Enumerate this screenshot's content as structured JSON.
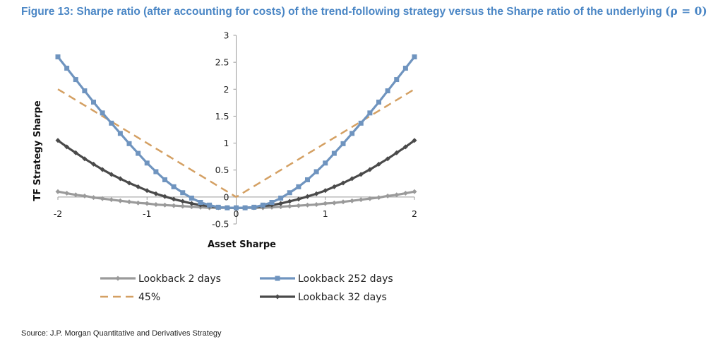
{
  "header": {
    "title_text": "Figure 13: Sharpe ratio (after accounting for costs) of the trend-following strategy versus the Sharpe ratio of the underlying ",
    "title_math": "(ρ = 0)"
  },
  "footer": {
    "source": "Source: J.P. Morgan Quantitative and Derivatives Strategy"
  },
  "chart_data": {
    "type": "line",
    "xlabel": "Asset Sharpe",
    "ylabel": "TF Strategy Sharpe",
    "xlim": [
      -2,
      2
    ],
    "ylim": [
      -0.5,
      3
    ],
    "xticks": [
      -2,
      -1,
      0,
      1,
      2
    ],
    "xtick_labels": [
      "-2",
      "-1",
      "0",
      "1",
      "2"
    ],
    "yticks": [
      3,
      2.5,
      2,
      1.5,
      1,
      0.5,
      0,
      -0.5
    ],
    "ytick_labels": [
      "3",
      "2.5",
      "2",
      "1.5",
      "1",
      "0.5",
      "0",
      "-0.5"
    ],
    "x": [
      -2.0,
      -1.9,
      -1.8,
      -1.7,
      -1.6,
      -1.5,
      -1.4,
      -1.3,
      -1.2,
      -1.1,
      -1.0,
      -0.9,
      -0.8,
      -0.7,
      -0.6,
      -0.5,
      -0.4,
      -0.3,
      -0.2,
      -0.1,
      0.0,
      0.1,
      0.2,
      0.3,
      0.4,
      0.5,
      0.6,
      0.7,
      0.8,
      0.9,
      1.0,
      1.1,
      1.2,
      1.3,
      1.4,
      1.5,
      1.6,
      1.7,
      1.8,
      1.9,
      2.0
    ],
    "series": [
      {
        "name": "Lookback 2 days",
        "color": "#9a9a9a",
        "marker": "diamond",
        "values": [
          0.1,
          0.07,
          0.04,
          0.02,
          -0.01,
          -0.03,
          -0.05,
          -0.07,
          -0.09,
          -0.11,
          -0.12,
          -0.14,
          -0.15,
          -0.16,
          -0.17,
          -0.18,
          -0.19,
          -0.2,
          -0.2,
          -0.2,
          -0.2,
          -0.2,
          -0.2,
          -0.2,
          -0.19,
          -0.18,
          -0.17,
          -0.16,
          -0.15,
          -0.14,
          -0.12,
          -0.11,
          -0.09,
          -0.07,
          -0.05,
          -0.03,
          -0.01,
          0.02,
          0.04,
          0.07,
          0.1
        ]
      },
      {
        "name": "Lookback 252 days",
        "color": "#6f94bf",
        "marker": "square",
        "values": [
          2.6,
          2.39,
          2.18,
          1.97,
          1.76,
          1.56,
          1.37,
          1.18,
          0.99,
          0.81,
          0.63,
          0.47,
          0.32,
          0.19,
          0.08,
          -0.02,
          -0.1,
          -0.15,
          -0.19,
          -0.2,
          -0.2,
          -0.2,
          -0.19,
          -0.15,
          -0.1,
          -0.02,
          0.08,
          0.19,
          0.32,
          0.47,
          0.63,
          0.81,
          0.99,
          1.18,
          1.37,
          1.56,
          1.76,
          1.97,
          2.18,
          2.39,
          2.6
        ]
      },
      {
        "name": "45%",
        "color": "#d4a063",
        "marker": "none",
        "dashed": true,
        "values": [
          2.0,
          1.9,
          1.8,
          1.7,
          1.6,
          1.5,
          1.4,
          1.3,
          1.2,
          1.1,
          1.0,
          0.9,
          0.8,
          0.7,
          0.6,
          0.5,
          0.4,
          0.3,
          0.2,
          0.1,
          0.0,
          0.1,
          0.2,
          0.3,
          0.4,
          0.5,
          0.6,
          0.7,
          0.8,
          0.9,
          1.0,
          1.1,
          1.2,
          1.3,
          1.4,
          1.5,
          1.6,
          1.7,
          1.8,
          1.9,
          2.0
        ]
      },
      {
        "name": "Lookback 32 days",
        "color": "#4a4a4a",
        "marker": "diamond",
        "values": [
          1.05,
          0.93,
          0.82,
          0.71,
          0.61,
          0.51,
          0.42,
          0.34,
          0.26,
          0.19,
          0.12,
          0.06,
          0.01,
          -0.04,
          -0.08,
          -0.12,
          -0.15,
          -0.17,
          -0.19,
          -0.2,
          -0.2,
          -0.2,
          -0.19,
          -0.17,
          -0.15,
          -0.12,
          -0.08,
          -0.04,
          0.01,
          0.06,
          0.12,
          0.19,
          0.26,
          0.34,
          0.42,
          0.51,
          0.61,
          0.71,
          0.82,
          0.93,
          1.05
        ]
      }
    ],
    "legend": {
      "placement": "bottom",
      "entries": [
        {
          "label": "Lookback 2 days",
          "series": 0
        },
        {
          "label": "Lookback 252 days",
          "series": 1
        },
        {
          "label": "45%",
          "series": 2
        },
        {
          "label": "Lookback 32 days",
          "series": 3
        }
      ]
    },
    "grid": false
  }
}
